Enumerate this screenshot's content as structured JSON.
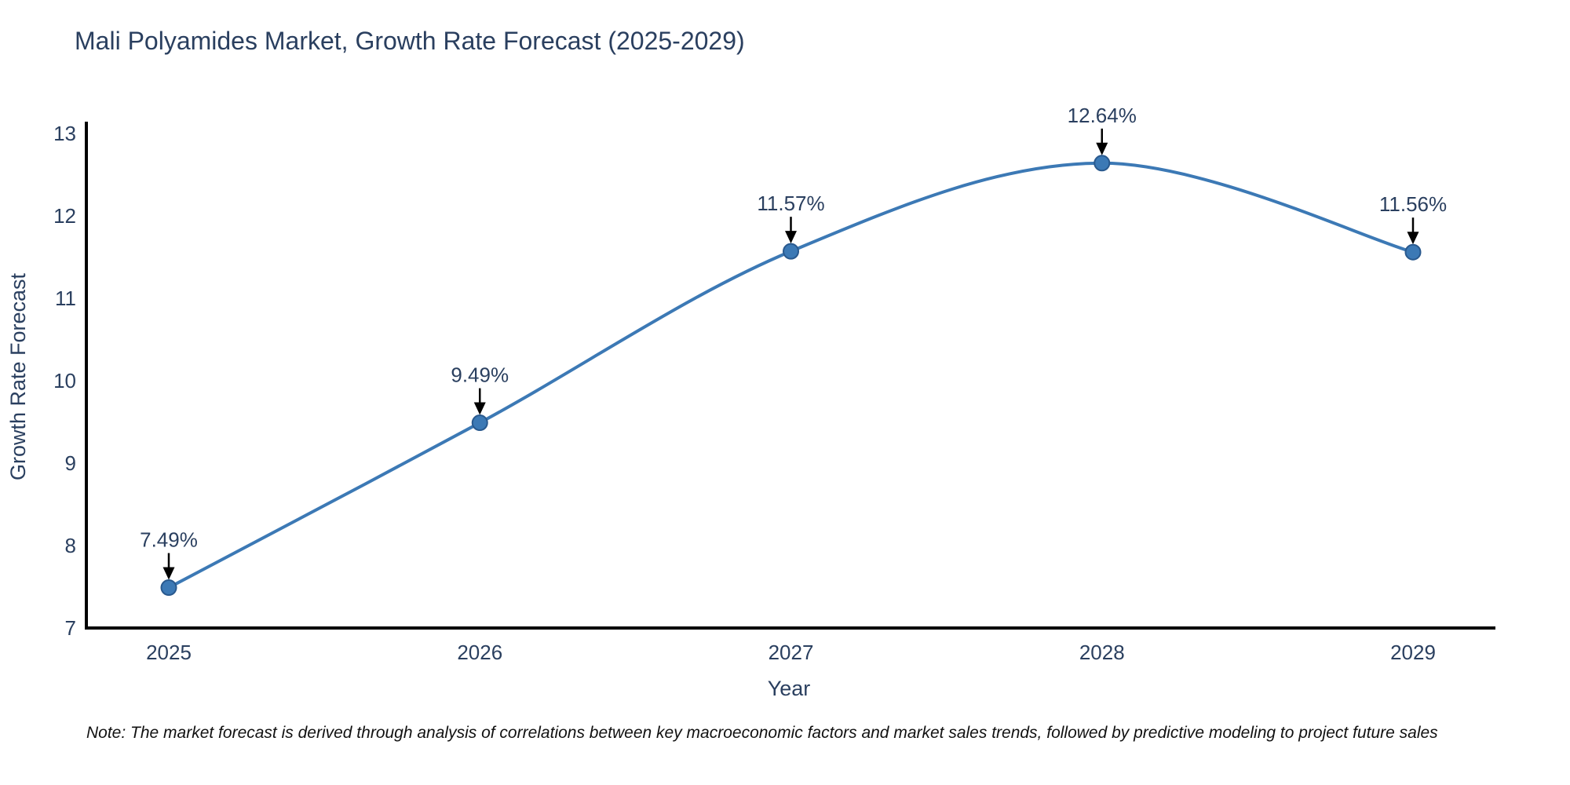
{
  "chart_data": {
    "type": "line",
    "title": "Mali Polyamides Market, Growth Rate Forecast (2025-2029)",
    "xlabel": "Year",
    "ylabel": "Growth Rate Forecast",
    "x": [
      2025,
      2026,
      2027,
      2028,
      2029
    ],
    "y": [
      7.49,
      9.49,
      11.57,
      12.64,
      11.56
    ],
    "point_labels": [
      "7.49%",
      "9.49%",
      "11.57%",
      "12.64%",
      "11.56%"
    ],
    "xticks": [
      "2025",
      "2026",
      "2027",
      "2028",
      "2029"
    ],
    "yticks": [
      "7",
      "8",
      "9",
      "10",
      "11",
      "12",
      "13"
    ],
    "ylim": [
      7,
      13
    ],
    "xlim": [
      2024.73,
      2029.26
    ],
    "grid": false,
    "legend": false,
    "line_shape": "spline",
    "marker": "circle",
    "annotation_arrow_direction": "down",
    "colors": {
      "line": "#3c79b5",
      "marker": "#3c79b5",
      "marker_edge": "#29598e",
      "axis": "#000000",
      "text": "#2a3f5f",
      "annotation_arrow": "#000000",
      "note_text": "#111111",
      "background": "#ffffff"
    },
    "note": "Note: The market forecast is derived through analysis of correlations between key macroeconomic factors and market sales trends, followed by predictive modeling to project future sales"
  }
}
